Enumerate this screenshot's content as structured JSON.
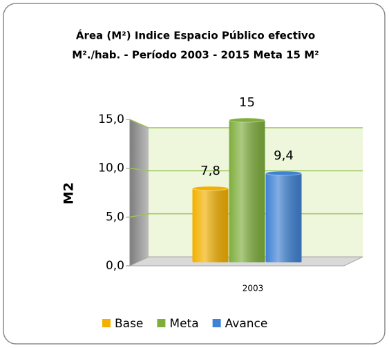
{
  "chart_data": {
    "type": "bar",
    "title_lines": [
      "Área (M²) Indice Espacio Público efectivo",
      "M².​/hab.  - Período 2003 - 2015  Meta 15 M²"
    ],
    "y_label": "M2",
    "categories": [
      "2003"
    ],
    "series": [
      {
        "name": "Base",
        "color": "#f2b000",
        "values": [
          7.8
        ],
        "value_labels": [
          "7,8"
        ]
      },
      {
        "name": "Meta",
        "color": "#7fae3c",
        "values": [
          15
        ],
        "value_labels": [
          "15"
        ]
      },
      {
        "name": "Avance",
        "color": "#3f82d4",
        "values": [
          9.4
        ],
        "value_labels": [
          "9,4"
        ]
      }
    ],
    "ylim": [
      0,
      15
    ],
    "yticks": [
      {
        "value": 0,
        "label": "0,0"
      },
      {
        "value": 5,
        "label": "5,0"
      },
      {
        "value": 10,
        "label": "10,0"
      },
      {
        "value": 15,
        "label": "15,0"
      }
    ],
    "grid": true,
    "legend": "bottom"
  }
}
